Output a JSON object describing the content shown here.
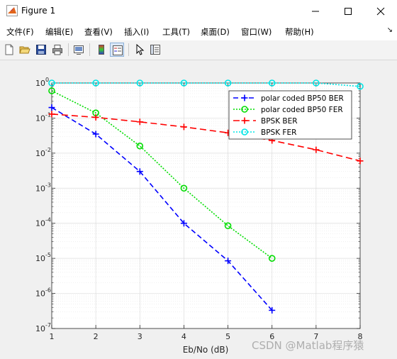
{
  "window": {
    "title": "Figure 1"
  },
  "menu": [
    {
      "label": "文件(F)"
    },
    {
      "label": "编辑(E)"
    },
    {
      "label": "查看(V)"
    },
    {
      "label": "插入(I)"
    },
    {
      "label": "工具(T)"
    },
    {
      "label": "桌面(D)"
    },
    {
      "label": "窗口(W)"
    },
    {
      "label": "帮助(H)"
    }
  ],
  "toolbar_icons": [
    "new-figure-icon",
    "open-file-icon",
    "save-icon",
    "print-icon",
    "print-preview-icon",
    "colorbar-icon",
    "legend-icon",
    "pointer-icon",
    "property-editor-icon"
  ],
  "watermark": "CSDN @Matlab程序猿",
  "chart_data": {
    "type": "line",
    "xlabel": "Eb/No (dB)",
    "ylabel": "",
    "title": "",
    "xlim": [
      1,
      8
    ],
    "ylim": [
      1e-07,
      1
    ],
    "yscale": "log",
    "grid": true,
    "x_ticks": [
      "1",
      "2",
      "3",
      "4",
      "5",
      "6",
      "7",
      "8"
    ],
    "y_ticks": [
      {
        "base": "10",
        "exp": "-7"
      },
      {
        "base": "10",
        "exp": "-6"
      },
      {
        "base": "10",
        "exp": "-5"
      },
      {
        "base": "10",
        "exp": "-4"
      },
      {
        "base": "10",
        "exp": "-3"
      },
      {
        "base": "10",
        "exp": "-2"
      },
      {
        "base": "10",
        "exp": "-1"
      },
      {
        "base": "10",
        "exp": "0"
      }
    ],
    "legend_position": "top-right",
    "series": [
      {
        "name": "polar coded BP50 BER",
        "color": "#0000ff",
        "dash": "7,4",
        "marker": "plus",
        "x": [
          1,
          2,
          3,
          4,
          5,
          6
        ],
        "y": [
          0.2,
          0.035,
          0.003,
          0.0001,
          8.5e-06,
          3.3e-07
        ]
      },
      {
        "name": "polar coded BP50 FER",
        "color": "#00dd00",
        "dash": "2,2",
        "marker": "circle",
        "x": [
          1,
          2,
          3,
          4,
          5,
          6
        ],
        "y": [
          0.6,
          0.14,
          0.016,
          0.001,
          8.5e-05,
          1e-05
        ]
      },
      {
        "name": "BPSK BER",
        "color": "#ff0000",
        "dash": "9,5",
        "marker": "plus",
        "x": [
          1,
          2,
          3,
          4,
          5,
          6,
          7,
          8
        ],
        "y": [
          0.13,
          0.105,
          0.078,
          0.056,
          0.038,
          0.023,
          0.0125,
          0.006
        ]
      },
      {
        "name": "BPSK FER",
        "color": "#00e5e5",
        "dash": "2,2",
        "marker": "circle",
        "x": [
          1,
          2,
          3,
          4,
          5,
          6,
          7,
          8
        ],
        "y": [
          1,
          1,
          1,
          1,
          1,
          1,
          1,
          0.8
        ]
      }
    ]
  }
}
